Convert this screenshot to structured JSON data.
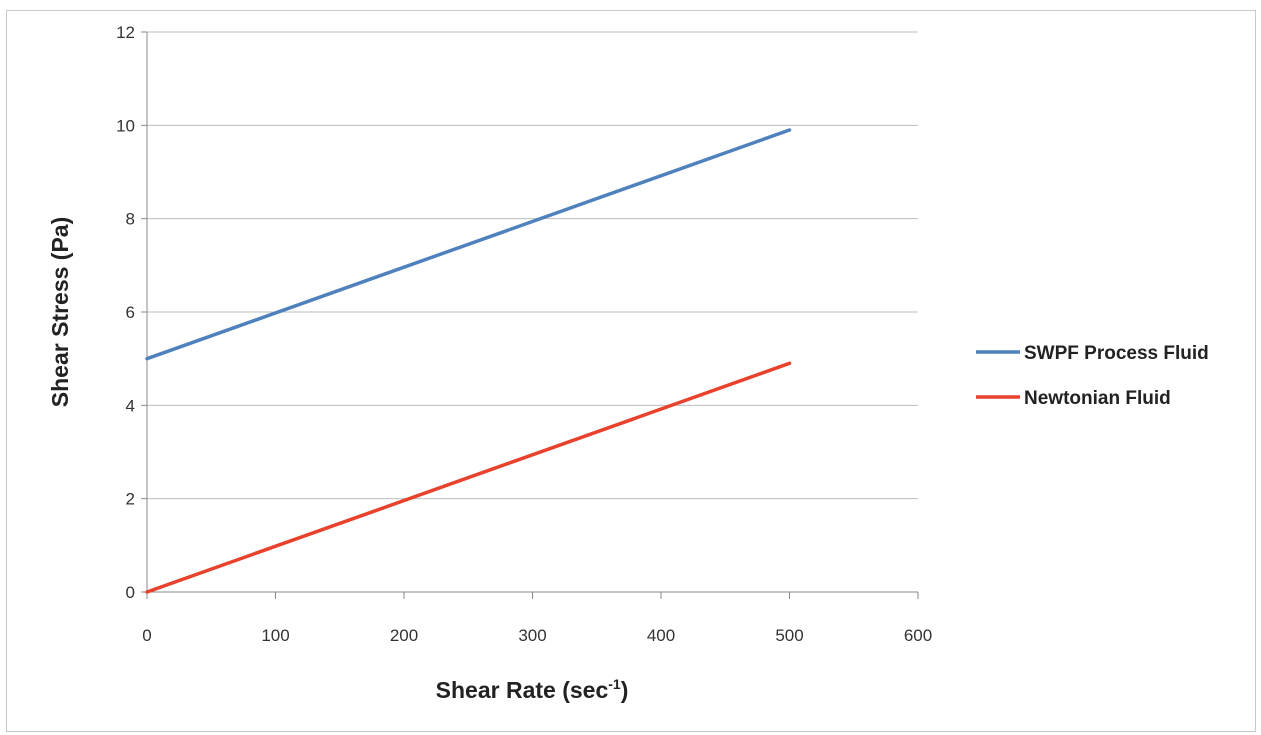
{
  "chart_data": {
    "type": "line",
    "xlabel": "Shear Rate (sec",
    "xlabel_sup": "-1",
    "xlabel_suffix": ")",
    "ylabel": "Shear Stress (Pa)",
    "xlim": [
      0,
      600
    ],
    "ylim": [
      0,
      12
    ],
    "x_ticks": [
      "0",
      "100",
      "200",
      "300",
      "400",
      "500",
      "600"
    ],
    "y_ticks": [
      "0",
      "2",
      "4",
      "6",
      "8",
      "10",
      "12"
    ],
    "grid": "horizontal",
    "legend_position": "right",
    "series": [
      {
        "name": "SWPF Process Fluid",
        "color": "#4f81bd",
        "x": [
          0,
          500
        ],
        "y": [
          5,
          9.9
        ]
      },
      {
        "name": "Newtonian Fluid",
        "color": "#e8412c",
        "x": [
          0,
          500
        ],
        "y": [
          0,
          4.9
        ]
      }
    ]
  }
}
